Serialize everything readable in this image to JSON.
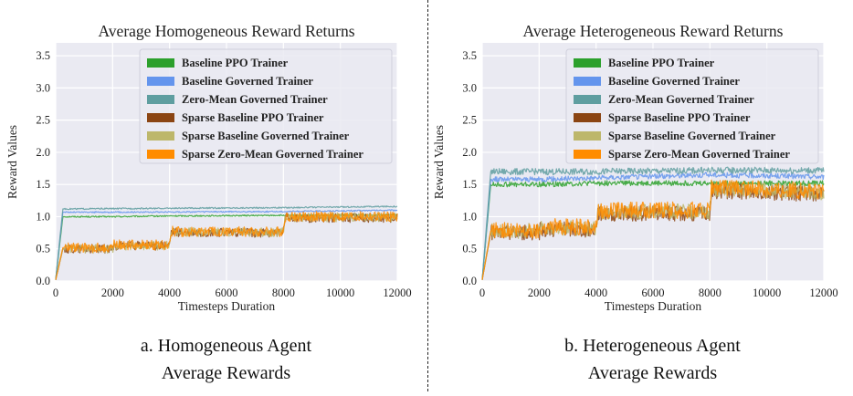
{
  "figure": {
    "captions": [
      {
        "line1": "a. Homogeneous Agent",
        "line2": "Average Rewards"
      },
      {
        "line1": "b.  Heterogeneous Agent",
        "line2": "Average Rewards"
      }
    ]
  },
  "chart_data": [
    {
      "type": "line",
      "title": "Average Homogeneous Reward Returns",
      "xlabel": "Timesteps Duration",
      "ylabel": "Reward Values",
      "xlim": [
        0,
        12000
      ],
      "ylim": [
        0,
        3.7
      ],
      "xticks": [
        0,
        2000,
        4000,
        6000,
        8000,
        10000,
        12000
      ],
      "yticks": [
        0.0,
        0.5,
        1.0,
        1.5,
        2.0,
        2.5,
        3.0,
        3.5
      ],
      "grid": true,
      "legend_position": "top-right",
      "series": [
        {
          "name": "Baseline PPO Trainer",
          "color": "#2ca02c",
          "noise": 0.01,
          "points": [
            [
              0,
              0.02
            ],
            [
              250,
              1.0
            ],
            [
              2000,
              1.0
            ],
            [
              4000,
              1.01
            ],
            [
              8000,
              1.02
            ],
            [
              12000,
              1.03
            ]
          ]
        },
        {
          "name": "Baseline Governed Trainer",
          "color": "#6495ed",
          "noise": 0.01,
          "points": [
            [
              0,
              0.02
            ],
            [
              250,
              1.07
            ],
            [
              2000,
              1.07
            ],
            [
              8000,
              1.08
            ],
            [
              12000,
              1.1
            ]
          ]
        },
        {
          "name": "Zero-Mean Governed Trainer",
          "color": "#5f9ea0",
          "noise": 0.01,
          "points": [
            [
              0,
              0.02
            ],
            [
              250,
              1.12
            ],
            [
              4000,
              1.13
            ],
            [
              8000,
              1.14
            ],
            [
              12000,
              1.16
            ]
          ]
        },
        {
          "name": "Sparse Baseline PPO Trainer",
          "color": "#8b4513",
          "noise": 0.07,
          "points": [
            [
              0,
              0.02
            ],
            [
              250,
              0.5
            ],
            [
              2000,
              0.5
            ],
            [
              2050,
              0.55
            ],
            [
              4000,
              0.55
            ],
            [
              4050,
              0.75
            ],
            [
              8000,
              0.75
            ],
            [
              8050,
              0.98
            ],
            [
              12000,
              0.98
            ]
          ]
        },
        {
          "name": "Sparse Baseline Governed Trainer",
          "color": "#bdb76b",
          "noise": 0.07,
          "points": [
            [
              0,
              0.02
            ],
            [
              250,
              0.5
            ],
            [
              2000,
              0.5
            ],
            [
              2050,
              0.55
            ],
            [
              4000,
              0.55
            ],
            [
              4050,
              0.76
            ],
            [
              8000,
              0.76
            ],
            [
              8050,
              0.99
            ],
            [
              12000,
              0.99
            ]
          ]
        },
        {
          "name": "Sparse Zero-Mean Governed Trainer",
          "color": "#ff8c00",
          "noise": 0.08,
          "points": [
            [
              0,
              0.02
            ],
            [
              250,
              0.52
            ],
            [
              2000,
              0.52
            ],
            [
              2050,
              0.56
            ],
            [
              4000,
              0.56
            ],
            [
              4050,
              0.77
            ],
            [
              8000,
              0.77
            ],
            [
              8050,
              1.0
            ],
            [
              12000,
              1.0
            ]
          ]
        }
      ]
    },
    {
      "type": "line",
      "title": "Average Heterogeneous Reward Returns",
      "xlabel": "Timesteps Duration",
      "ylabel": "Reward Values",
      "xlim": [
        0,
        12000
      ],
      "ylim": [
        0,
        3.7
      ],
      "xticks": [
        0,
        2000,
        4000,
        6000,
        8000,
        10000,
        12000
      ],
      "yticks": [
        0.0,
        0.5,
        1.0,
        1.5,
        2.0,
        2.5,
        3.0,
        3.5
      ],
      "grid": true,
      "legend_position": "top-right",
      "series": [
        {
          "name": "Baseline PPO Trainer",
          "color": "#2ca02c",
          "noise": 0.04,
          "points": [
            [
              0,
              0.02
            ],
            [
              300,
              1.5
            ],
            [
              2000,
              1.5
            ],
            [
              4000,
              1.52
            ],
            [
              8000,
              1.52
            ],
            [
              12000,
              1.52
            ]
          ]
        },
        {
          "name": "Baseline Governed Trainer",
          "color": "#6495ed",
          "noise": 0.04,
          "points": [
            [
              0,
              0.02
            ],
            [
              300,
              1.58
            ],
            [
              2000,
              1.58
            ],
            [
              8000,
              1.65
            ],
            [
              12000,
              1.62
            ]
          ]
        },
        {
          "name": "Zero-Mean Governed Trainer",
          "color": "#5f9ea0",
          "noise": 0.05,
          "points": [
            [
              0,
              0.02
            ],
            [
              300,
              1.7
            ],
            [
              4000,
              1.7
            ],
            [
              8000,
              1.72
            ],
            [
              12000,
              1.72
            ]
          ]
        },
        {
          "name": "Sparse Baseline PPO Trainer",
          "color": "#8b4513",
          "noise": 0.12,
          "points": [
            [
              0,
              0.02
            ],
            [
              300,
              0.75
            ],
            [
              2000,
              0.75
            ],
            [
              2050,
              0.8
            ],
            [
              4000,
              0.8
            ],
            [
              4050,
              1.05
            ],
            [
              8000,
              1.05
            ],
            [
              8050,
              1.4
            ],
            [
              12000,
              1.35
            ]
          ]
        },
        {
          "name": "Sparse Baseline Governed Trainer",
          "color": "#bdb76b",
          "noise": 0.12,
          "points": [
            [
              0,
              0.02
            ],
            [
              300,
              0.78
            ],
            [
              2000,
              0.78
            ],
            [
              2050,
              0.82
            ],
            [
              4000,
              0.82
            ],
            [
              4050,
              1.08
            ],
            [
              8000,
              1.08
            ],
            [
              8050,
              1.42
            ],
            [
              12000,
              1.38
            ]
          ]
        },
        {
          "name": "Sparse Zero-Mean Governed Trainer",
          "color": "#ff8c00",
          "noise": 0.13,
          "points": [
            [
              0,
              0.02
            ],
            [
              300,
              0.78
            ],
            [
              2000,
              0.78
            ],
            [
              2050,
              0.84
            ],
            [
              4000,
              0.84
            ],
            [
              4050,
              1.1
            ],
            [
              8000,
              1.1
            ],
            [
              8050,
              1.45
            ],
            [
              12000,
              1.4
            ]
          ]
        }
      ]
    }
  ]
}
